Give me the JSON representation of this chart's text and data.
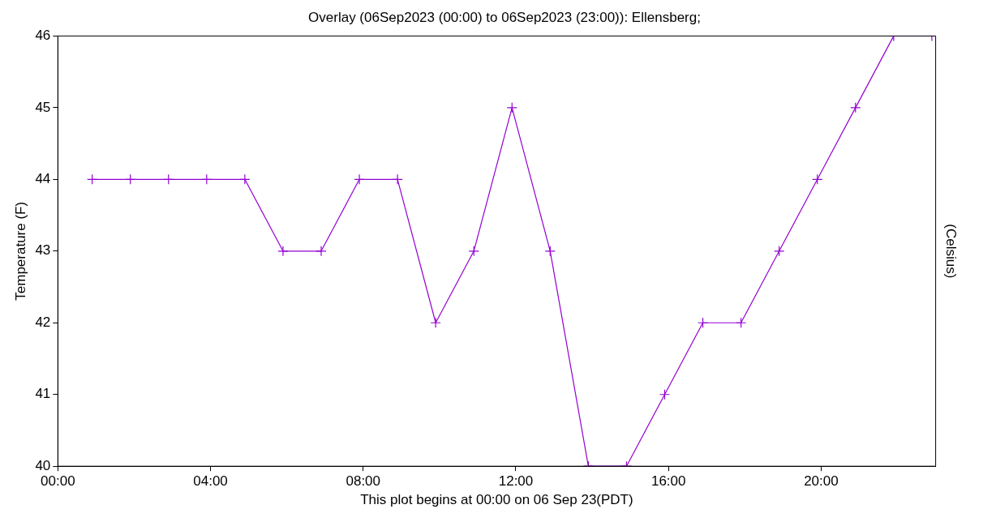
{
  "chart_data": {
    "type": "line",
    "title": "Overlay (06Sep2023 (00:00) to 06Sep2023 (23:00)): Ellensberg;",
    "xlabel": "This plot begins at 00:00 on 06 Sep 23(PDT)",
    "ylabel": "Temperature (F)",
    "y2label": "(Celsius)",
    "x": [
      0.9,
      1.9,
      2.9,
      3.9,
      4.9,
      5.9,
      6.9,
      7.9,
      8.9,
      9.9,
      10.9,
      11.9,
      12.9,
      13.9,
      14.9,
      15.9,
      16.9,
      17.9,
      18.9,
      19.9,
      20.9,
      21.9,
      22.9
    ],
    "series": [
      {
        "color": "#9400d3",
        "values": [
          44,
          44,
          44,
          44,
          44,
          43,
          43,
          44,
          44,
          42,
          43,
          45,
          43,
          40,
          40,
          41,
          42,
          42,
          43,
          44,
          45,
          46,
          46
        ]
      }
    ],
    "xlim": [
      0,
      23
    ],
    "xticks": [
      {
        "value": 0,
        "label": "00:00"
      },
      {
        "value": 4,
        "label": "04:00"
      },
      {
        "value": 8,
        "label": "08:00"
      },
      {
        "value": 12,
        "label": "12:00"
      },
      {
        "value": 16,
        "label": "16:00"
      },
      {
        "value": 20,
        "label": "20:00"
      }
    ],
    "ylim": [
      40,
      46
    ],
    "yticks": [
      40,
      41,
      42,
      43,
      44,
      45,
      46
    ],
    "grid": false,
    "legend": false,
    "marker": "cross",
    "line_style": "solid"
  }
}
